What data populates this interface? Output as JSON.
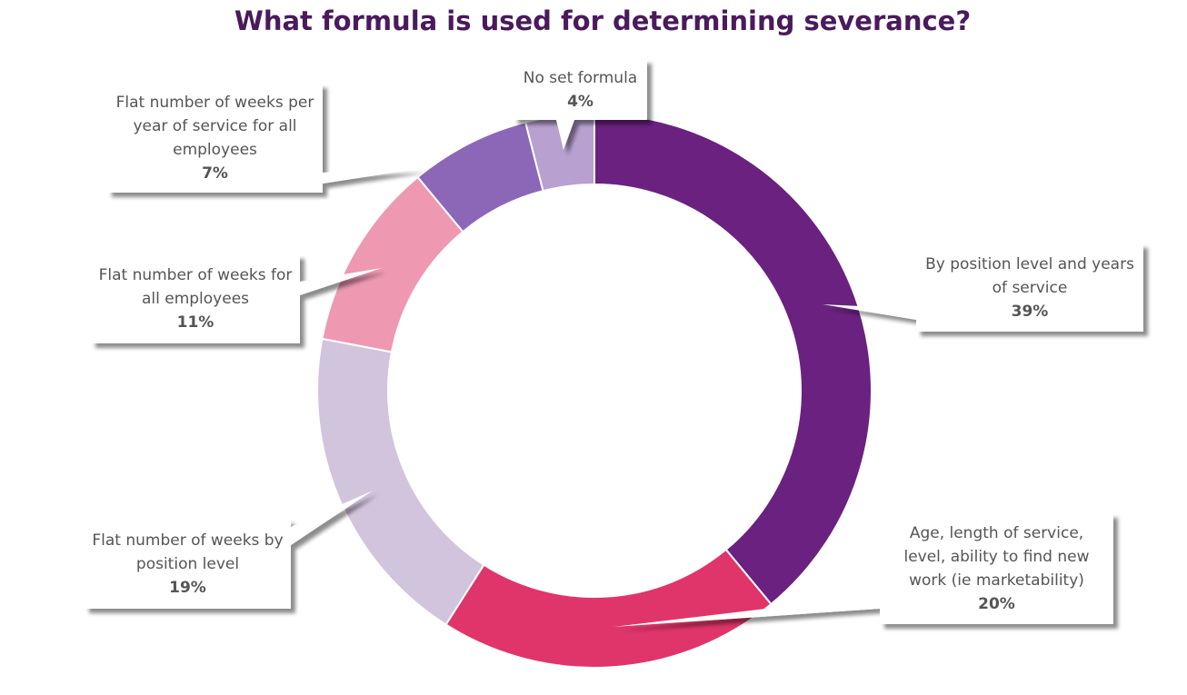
{
  "chart_data": {
    "type": "donut",
    "title": "What formula is used for determining severance?",
    "categories": [
      "By position level and years of service",
      "Age, length of service, level, ability to find new work (ie marketability)",
      "Flat number of weeks by position level",
      "Flat number of weeks for all employees",
      "Flat number of weeks per year of service for all employees",
      "No set formula"
    ],
    "values": [
      39,
      20,
      19,
      11,
      7,
      4
    ],
    "value_labels": [
      "39%",
      "20%",
      "19%",
      "11%",
      "7%",
      "4%"
    ],
    "colors": [
      "#6b2180",
      "#e0356a",
      "#d2c4dc",
      "#ee98b2",
      "#8c67b8",
      "#b8a0d0"
    ]
  }
}
